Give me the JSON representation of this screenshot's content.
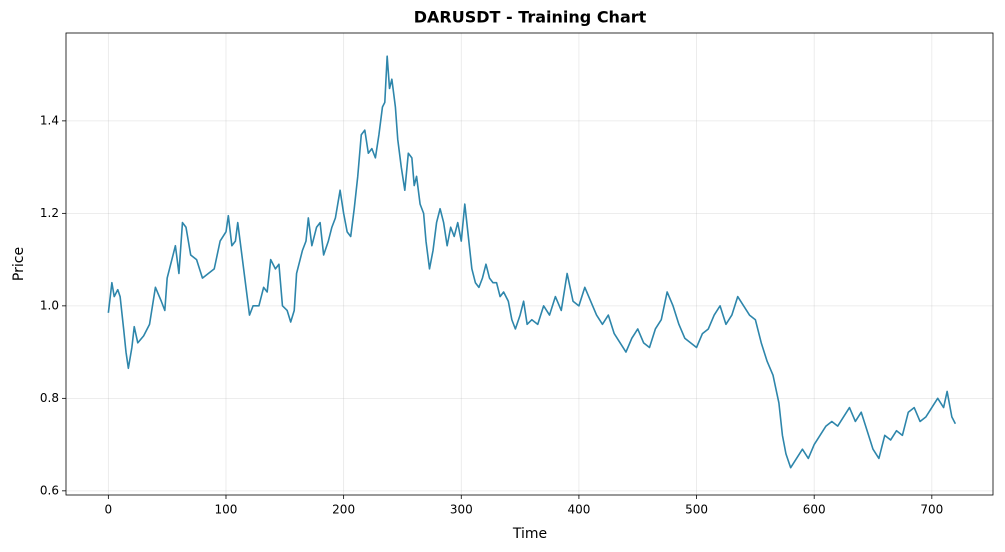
{
  "chart_data": {
    "type": "line",
    "title": "DARUSDT - Training Chart",
    "x_label": "Time",
    "y_label": "Price",
    "x": [
      0,
      3,
      5,
      8,
      10,
      13,
      15,
      17,
      20,
      22,
      25,
      30,
      35,
      40,
      45,
      48,
      50,
      53,
      57,
      60,
      63,
      66,
      70,
      75,
      80,
      85,
      90,
      95,
      100,
      102,
      105,
      108,
      110,
      113,
      116,
      120,
      123,
      128,
      132,
      135,
      138,
      142,
      145,
      148,
      152,
      155,
      158,
      160,
      165,
      168,
      170,
      173,
      177,
      180,
      183,
      187,
      190,
      193,
      197,
      200,
      203,
      206,
      209,
      212,
      215,
      218,
      221,
      224,
      227,
      230,
      233,
      235,
      237,
      239,
      241,
      244,
      246,
      249,
      252,
      255,
      258,
      260,
      262,
      265,
      268,
      270,
      273,
      276,
      279,
      282,
      285,
      288,
      291,
      294,
      297,
      300,
      303,
      306,
      309,
      312,
      315,
      318,
      321,
      324,
      327,
      330,
      333,
      336,
      340,
      343,
      346,
      350,
      353,
      356,
      360,
      365,
      370,
      375,
      380,
      385,
      390,
      395,
      400,
      405,
      410,
      415,
      420,
      425,
      430,
      435,
      440,
      445,
      450,
      455,
      460,
      465,
      470,
      475,
      480,
      485,
      490,
      495,
      500,
      505,
      510,
      515,
      520,
      525,
      530,
      535,
      540,
      545,
      550,
      555,
      560,
      565,
      570,
      573,
      576,
      580,
      585,
      590,
      595,
      600,
      605,
      610,
      615,
      620,
      625,
      630,
      635,
      640,
      645,
      650,
      655,
      660,
      665,
      670,
      675,
      680,
      685,
      690,
      695,
      700,
      705,
      710,
      713,
      717,
      720
    ],
    "series": [
      {
        "name": "DARUSDT",
        "color": "#2e86ab",
        "values": [
          0.985,
          1.05,
          1.02,
          1.035,
          1.02,
          0.95,
          0.9,
          0.865,
          0.91,
          0.955,
          0.92,
          0.935,
          0.96,
          1.04,
          1.01,
          0.99,
          1.06,
          1.09,
          1.13,
          1.07,
          1.18,
          1.17,
          1.11,
          1.1,
          1.06,
          1.07,
          1.08,
          1.14,
          1.16,
          1.195,
          1.13,
          1.14,
          1.18,
          1.12,
          1.06,
          0.98,
          1.0,
          1.0,
          1.04,
          1.03,
          1.1,
          1.08,
          1.09,
          1.0,
          0.99,
          0.965,
          0.99,
          1.07,
          1.12,
          1.14,
          1.19,
          1.13,
          1.17,
          1.18,
          1.11,
          1.14,
          1.17,
          1.19,
          1.25,
          1.2,
          1.16,
          1.15,
          1.21,
          1.28,
          1.37,
          1.38,
          1.33,
          1.34,
          1.32,
          1.37,
          1.43,
          1.44,
          1.54,
          1.47,
          1.49,
          1.43,
          1.36,
          1.3,
          1.25,
          1.33,
          1.32,
          1.26,
          1.28,
          1.22,
          1.2,
          1.14,
          1.08,
          1.12,
          1.18,
          1.21,
          1.18,
          1.13,
          1.17,
          1.15,
          1.18,
          1.14,
          1.22,
          1.15,
          1.08,
          1.05,
          1.04,
          1.06,
          1.09,
          1.06,
          1.05,
          1.05,
          1.02,
          1.03,
          1.01,
          0.97,
          0.95,
          0.98,
          1.01,
          0.96,
          0.97,
          0.96,
          1.0,
          0.98,
          1.02,
          0.99,
          1.07,
          1.01,
          1.0,
          1.04,
          1.01,
          0.98,
          0.96,
          0.98,
          0.94,
          0.92,
          0.9,
          0.93,
          0.95,
          0.92,
          0.91,
          0.95,
          0.97,
          1.03,
          1.0,
          0.96,
          0.93,
          0.92,
          0.91,
          0.94,
          0.95,
          0.98,
          1.0,
          0.96,
          0.98,
          1.02,
          1.0,
          0.98,
          0.97,
          0.92,
          0.88,
          0.85,
          0.79,
          0.72,
          0.68,
          0.65,
          0.67,
          0.69,
          0.67,
          0.7,
          0.72,
          0.74,
          0.75,
          0.74,
          0.76,
          0.78,
          0.75,
          0.77,
          0.73,
          0.69,
          0.67,
          0.72,
          0.71,
          0.73,
          0.72,
          0.77,
          0.78,
          0.75,
          0.76,
          0.78,
          0.8,
          0.78,
          0.815,
          0.76,
          0.745
        ]
      }
    ],
    "xlim": [
      -36,
      752
    ],
    "ylim": [
      0.591,
      1.59
    ],
    "xticks": [
      0,
      100,
      200,
      300,
      400,
      500,
      600,
      700
    ],
    "yticks": [
      0.6,
      0.8,
      {
        "value": 1,
        "label": "1.0"
      },
      1.2,
      1.4
    ],
    "grid": true
  }
}
